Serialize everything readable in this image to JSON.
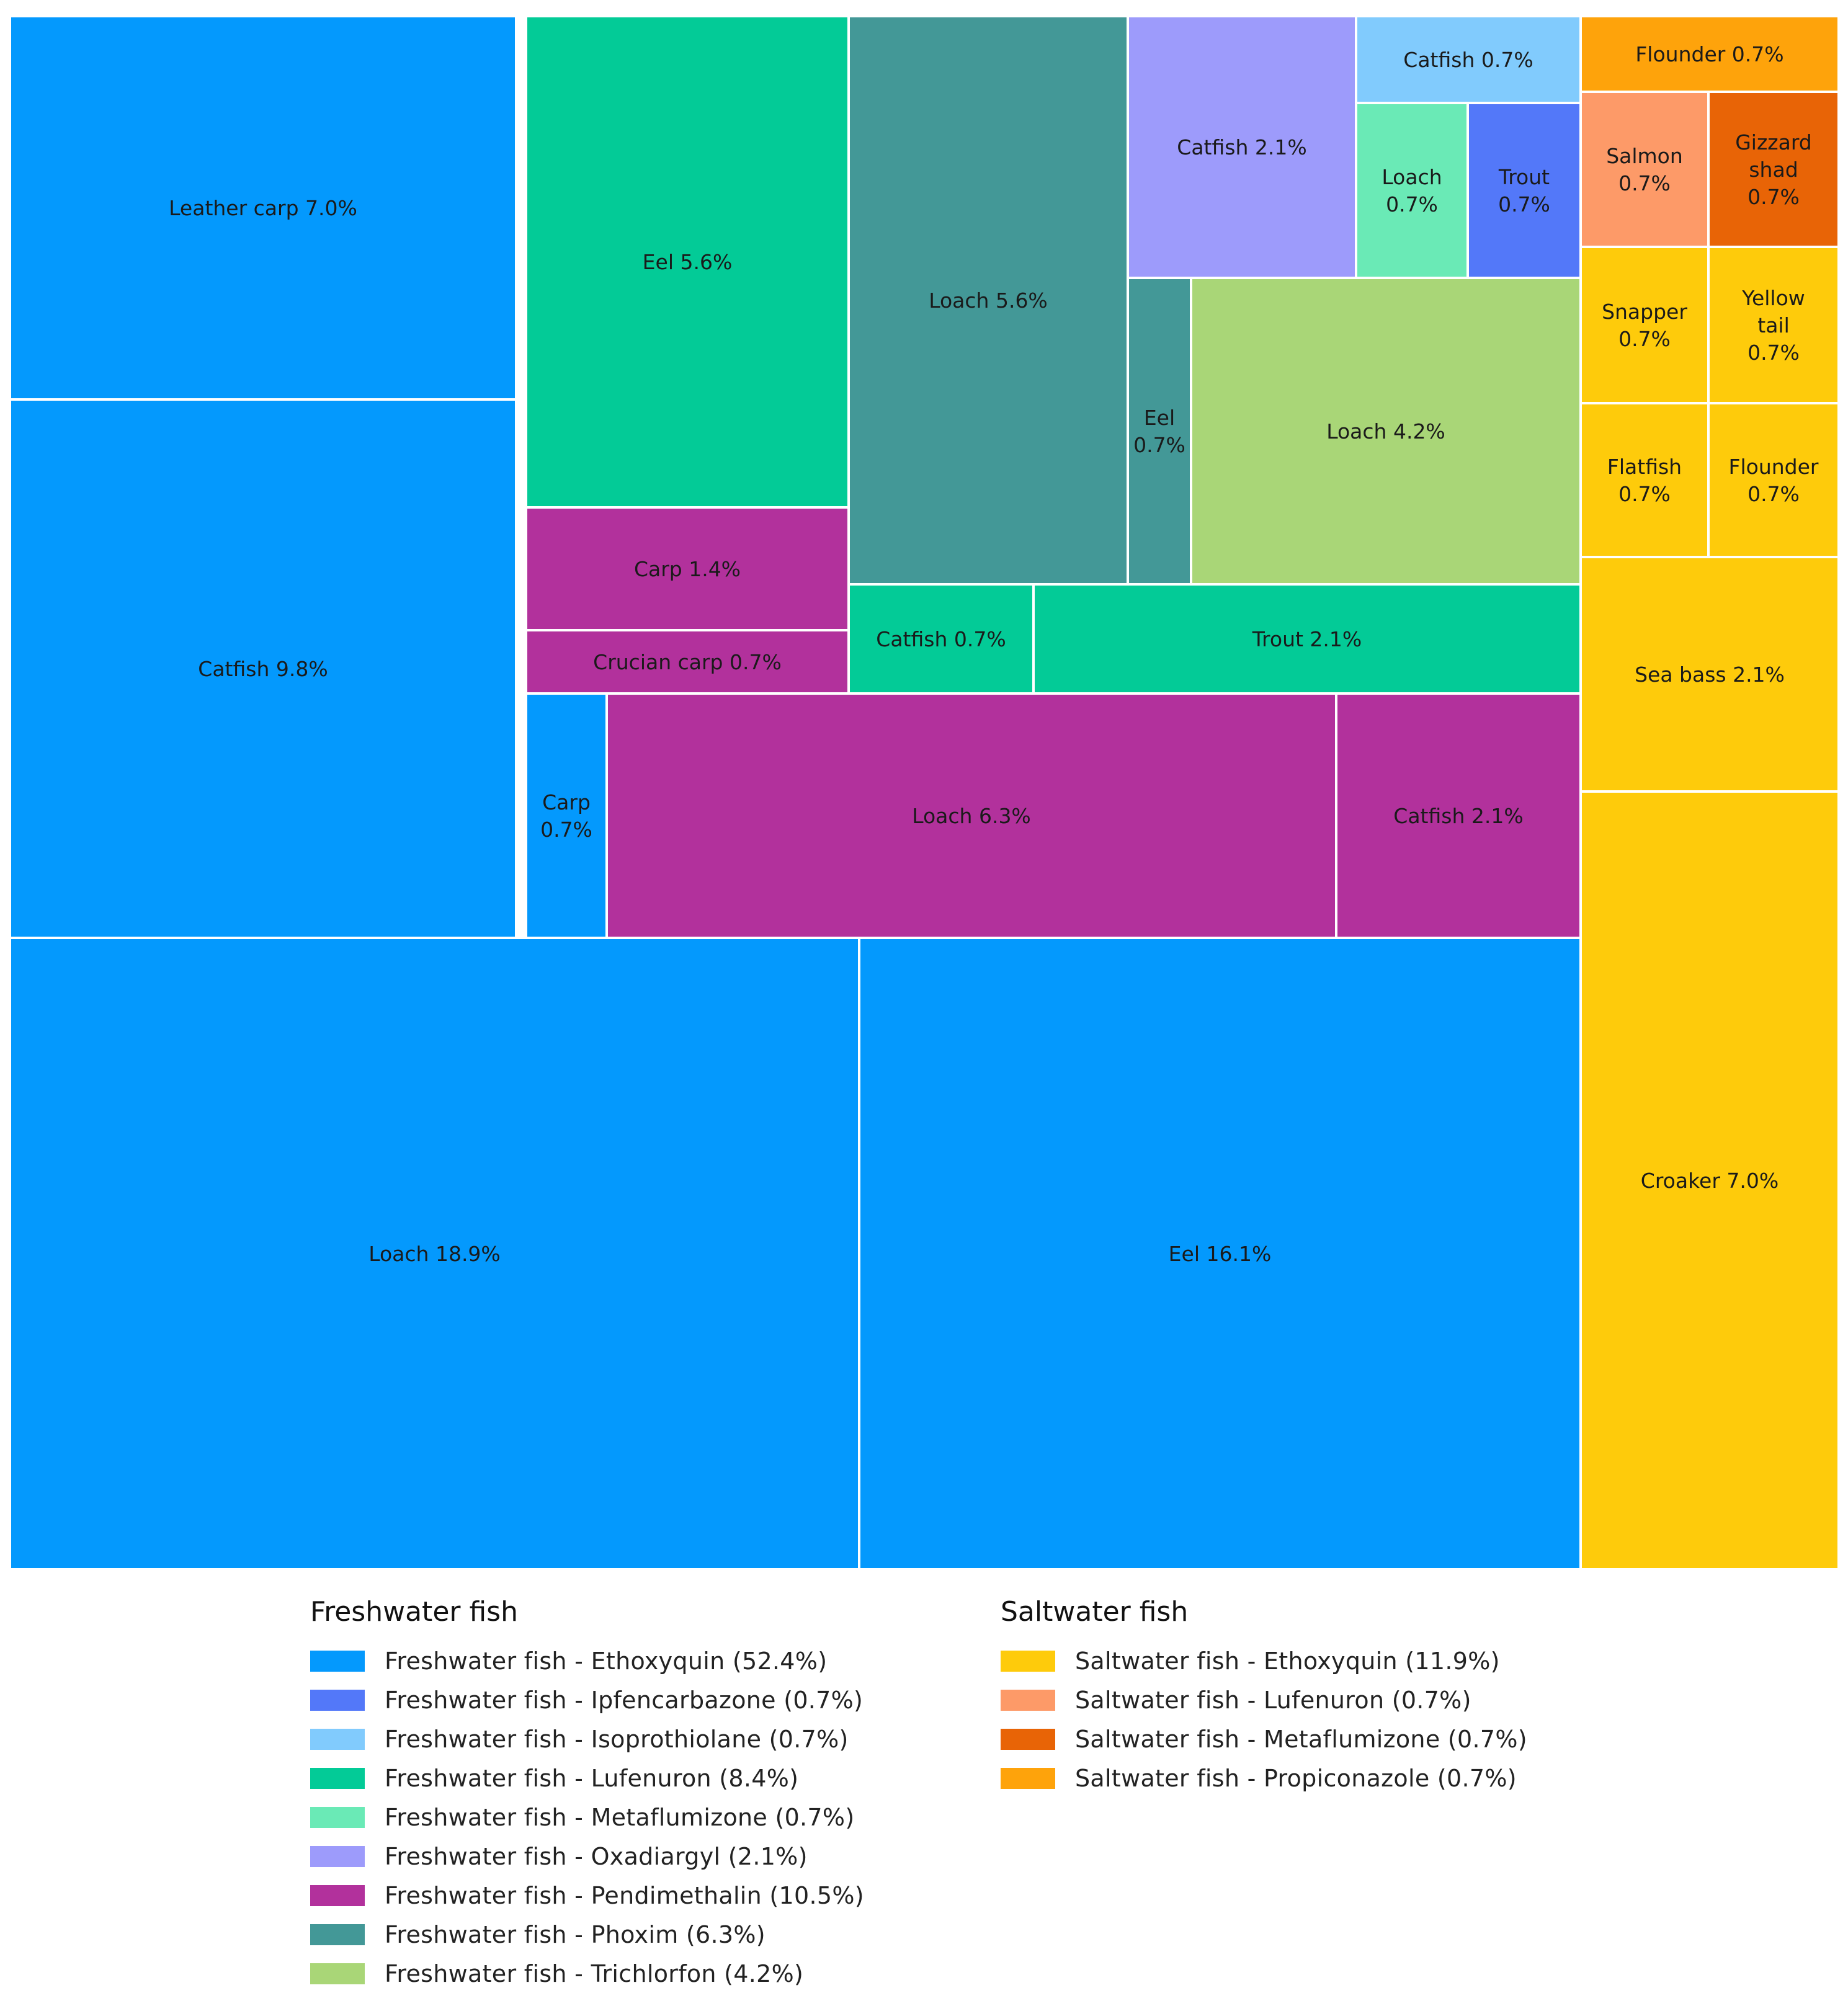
{
  "chart_data": {
    "type": "treemap",
    "title": "",
    "groups": [
      {
        "name": "Freshwater fish",
        "categories": [
          {
            "key": "fw-ethoxyquin",
            "label": "Freshwater fish - Ethoxyquin (52.4%)",
            "value": 52.4,
            "color": "#0499FD",
            "items": [
              {
                "name": "Leather carp",
                "value": 7.0,
                "label": "Leather carp 7.0%"
              },
              {
                "name": "Catfish",
                "value": 9.8,
                "label": "Catfish 9.8%"
              },
              {
                "name": "Carp",
                "value": 0.7,
                "label": "Carp 0.7%"
              },
              {
                "name": "Loach",
                "value": 18.9,
                "label": "Loach 18.9%"
              },
              {
                "name": "Eel",
                "value": 16.1,
                "label": "Eel 16.1%"
              }
            ]
          },
          {
            "key": "fw-ipfencarbazone",
            "label": "Freshwater fish - Ipfencarbazone (0.7%)",
            "value": 0.7,
            "color": "#5378F9",
            "items": [
              {
                "name": "Trout",
                "value": 0.7,
                "label": "Trout 0.7%"
              }
            ]
          },
          {
            "key": "fw-isoprothiolane",
            "label": "Freshwater fish - Isoprothiolane (0.7%)",
            "value": 0.7,
            "color": "#81CBFD",
            "items": [
              {
                "name": "Catfish",
                "value": 0.7,
                "label": "Catfish 0.7%"
              }
            ]
          },
          {
            "key": "fw-lufenuron",
            "label": "Freshwater fish - Lufenuron (8.4%)",
            "value": 8.4,
            "color": "#03CB97",
            "items": [
              {
                "name": "Eel",
                "value": 5.6,
                "label": "Eel 5.6%"
              },
              {
                "name": "Catfish",
                "value": 0.7,
                "label": "Catfish 0.7%"
              },
              {
                "name": "Trout",
                "value": 2.1,
                "label": "Trout 2.1%"
              }
            ]
          },
          {
            "key": "fw-metaflumizone",
            "label": "Freshwater fish - Metaflumizone (0.7%)",
            "value": 0.7,
            "color": "#6AEAB6",
            "items": [
              {
                "name": "Loach",
                "value": 0.7,
                "label": "Loach 0.7%"
              }
            ]
          },
          {
            "key": "fw-oxadiargyl",
            "label": "Freshwater fish - Oxadiargyl (2.1%)",
            "value": 2.1,
            "color": "#9D9BFB",
            "items": [
              {
                "name": "Catfish",
                "value": 2.1,
                "label": "Catfish 2.1%"
              }
            ]
          },
          {
            "key": "fw-pendimethalin",
            "label": "Freshwater fish - Pendimethalin (10.5%)",
            "value": 10.5,
            "color": "#B2319C",
            "items": [
              {
                "name": "Carp",
                "value": 1.4,
                "label": "Carp 1.4%"
              },
              {
                "name": "Crucian carp",
                "value": 0.7,
                "label": "Crucian carp 0.7%"
              },
              {
                "name": "Loach",
                "value": 6.3,
                "label": "Loach 6.3%"
              },
              {
                "name": "Catfish",
                "value": 2.1,
                "label": "Catfish 2.1%"
              }
            ]
          },
          {
            "key": "fw-phoxim",
            "label": "Freshwater fish - Phoxim (6.3%)",
            "value": 6.3,
            "color": "#439897",
            "items": [
              {
                "name": "Loach",
                "value": 5.6,
                "label": "Loach 5.6%"
              },
              {
                "name": "Eel",
                "value": 0.7,
                "label": "Eel 0.7%"
              }
            ]
          },
          {
            "key": "fw-trichlorfon",
            "label": "Freshwater fish - Trichlorfon (4.2%)",
            "value": 4.2,
            "color": "#A9D677",
            "items": [
              {
                "name": "Loach",
                "value": 4.2,
                "label": "Loach 4.2%"
              }
            ]
          }
        ]
      },
      {
        "name": "Saltwater fish",
        "categories": [
          {
            "key": "sw-ethoxyquin",
            "label": "Saltwater fish - Ethoxyquin (11.9%)",
            "value": 11.9,
            "color": "#FECB0B",
            "items": [
              {
                "name": "Snapper",
                "value": 0.7,
                "label": "Snapper 0.7%"
              },
              {
                "name": "Yellow tail",
                "value": 0.7,
                "label": "Yellow tail 0.7%"
              },
              {
                "name": "Flatfish",
                "value": 0.7,
                "label": "Flatfish 0.7%"
              },
              {
                "name": "Flounder",
                "value": 0.7,
                "label": "Flounder 0.7%"
              },
              {
                "name": "Sea bass",
                "value": 2.1,
                "label": "Sea bass 2.1%"
              },
              {
                "name": "Croaker",
                "value": 7.0,
                "label": "Croaker 7.0%"
              }
            ]
          },
          {
            "key": "sw-lufenuron",
            "label": "Saltwater fish - Lufenuron (0.7%)",
            "value": 0.7,
            "color": "#FD9A68",
            "items": [
              {
                "name": "Salmon",
                "value": 0.7,
                "label": "Salmon 0.7%"
              }
            ]
          },
          {
            "key": "sw-metaflumizone",
            "label": "Saltwater fish - Metaflumizone (0.7%)",
            "value": 0.7,
            "color": "#E86406",
            "items": [
              {
                "name": "Gizzard shad",
                "value": 0.7,
                "label": "Gizzard shad 0.7%"
              }
            ]
          },
          {
            "key": "sw-propiconazole",
            "label": "Saltwater fish - Propiconazole (0.7%)",
            "value": 0.7,
            "color": "#FEA30B",
            "items": [
              {
                "name": "Flounder",
                "value": 0.7,
                "label": "Flounder 0.7%"
              }
            ]
          }
        ]
      }
    ]
  }
}
